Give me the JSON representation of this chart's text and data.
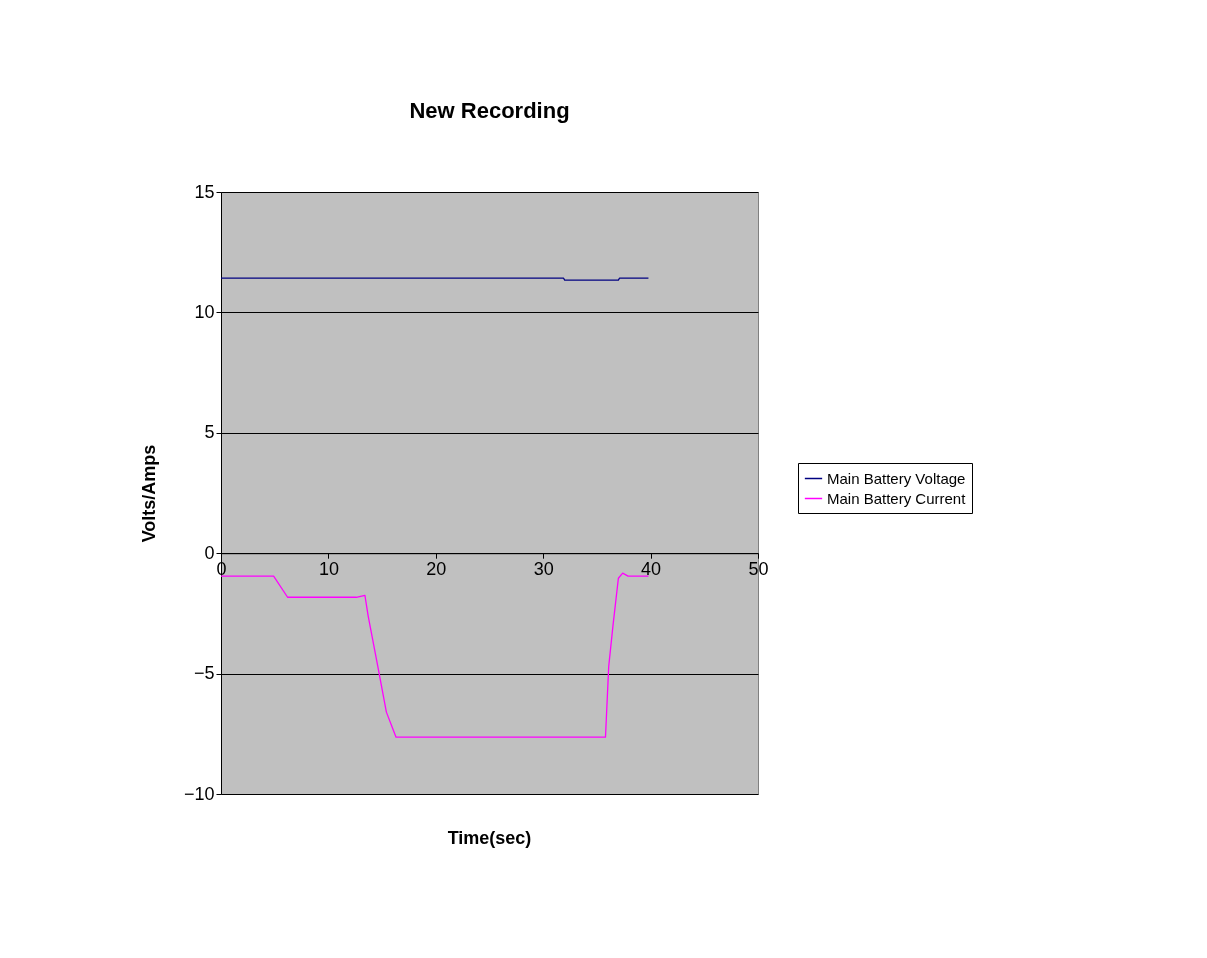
{
  "chart_data": {
    "type": "line",
    "title": "New Recording",
    "xlabel": "Time(sec)",
    "ylabel": "Volts/Amps",
    "xlim": [
      0,
      50
    ],
    "xticks": [
      0,
      10,
      20,
      30,
      40,
      50
    ],
    "ylim": [
      -10,
      15
    ],
    "yticks": [
      -10,
      -5,
      0,
      5,
      10,
      15
    ],
    "grid": "y",
    "legend": "right",
    "marker": "none",
    "line_style": "solid",
    "series": [
      {
        "name": "Main Battery Voltage",
        "color": "#000080",
        "x": [
          0,
          31.9,
          32.0,
          37.0,
          37.1,
          39.8
        ],
        "values": [
          11.42,
          11.42,
          11.34,
          11.34,
          11.42,
          11.42
        ]
      },
      {
        "name": "Main Battery Current",
        "color": "#ff00ff",
        "x": [
          0,
          4.9,
          6.2,
          12.6,
          13.4,
          13.7,
          14.6,
          15.4,
          16.3,
          35.8,
          36.1,
          36.5,
          37.0,
          37.4,
          37.9,
          39.8
        ],
        "values": [
          -0.95,
          -0.95,
          -1.83,
          -1.83,
          -1.75,
          -2.6,
          -4.7,
          -6.6,
          -7.64,
          -7.64,
          -4.7,
          -3.0,
          -1.04,
          -0.83,
          -0.95,
          -0.95
        ]
      }
    ]
  }
}
